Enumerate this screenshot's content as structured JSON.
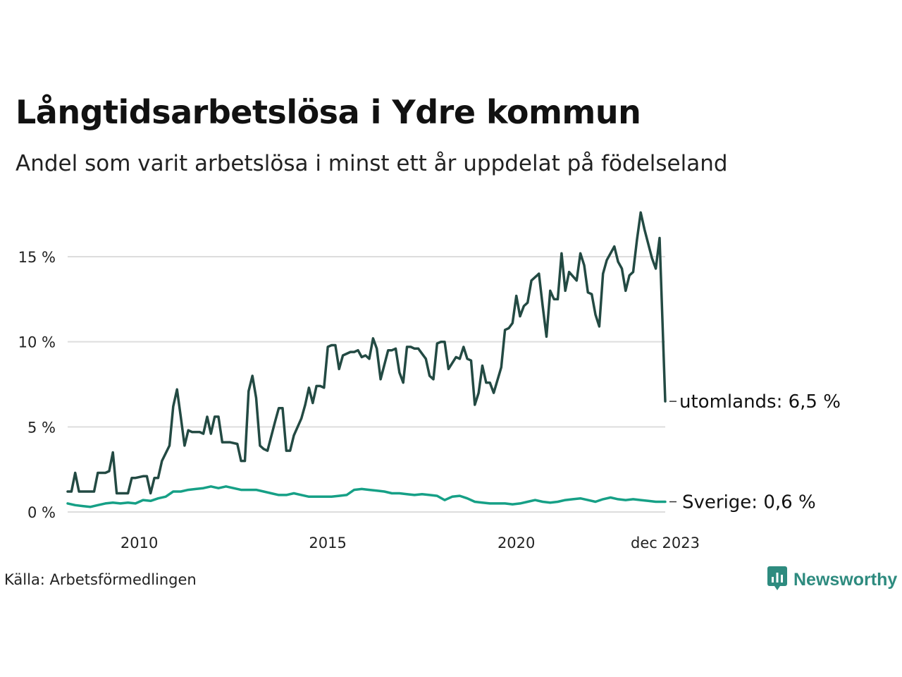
{
  "header": {
    "title": "Långtidsarbetslösa i Ydre kommun",
    "subtitle": "Andel som varit arbetslösa i minst ett år uppdelat på födelseland"
  },
  "footer": {
    "source": "Källa: Arbetsförmedlingen",
    "brand": "Newsworthy",
    "brand_icon": "newsworthy-logo-icon"
  },
  "chart_data": {
    "type": "line",
    "title": "Långtidsarbetslösa i Ydre kommun",
    "subtitle": "Andel som varit arbetslösa i minst ett år uppdelat på födelseland",
    "xlabel": "",
    "ylabel": "",
    "x_start": "2008-03",
    "x_end": "2023-12",
    "xlim": [
      2008.1,
      2023.95
    ],
    "ylim": [
      0,
      18
    ],
    "grid": true,
    "x_ticks": [
      {
        "value": 2010,
        "label": "2010"
      },
      {
        "value": 2015,
        "label": "2015"
      },
      {
        "value": 2020,
        "label": "2020"
      },
      {
        "value": 2023.95,
        "label": "dec 2023"
      }
    ],
    "y_ticks": [
      {
        "value": 0,
        "label": "0 %"
      },
      {
        "value": 5,
        "label": "5 %"
      },
      {
        "value": 10,
        "label": "10 %"
      },
      {
        "value": 15,
        "label": "15 %"
      }
    ],
    "series": [
      {
        "name": "utomlands",
        "end_label": "utomlands: 6,5 %",
        "color": "#234a43",
        "points": [
          [
            2008.1,
            1.2
          ],
          [
            2008.2,
            1.2
          ],
          [
            2008.3,
            2.3
          ],
          [
            2008.4,
            1.2
          ],
          [
            2008.5,
            1.2
          ],
          [
            2008.7,
            1.2
          ],
          [
            2008.8,
            1.2
          ],
          [
            2008.9,
            2.3
          ],
          [
            2009.1,
            2.3
          ],
          [
            2009.2,
            2.4
          ],
          [
            2009.3,
            3.5
          ],
          [
            2009.4,
            1.1
          ],
          [
            2009.6,
            1.1
          ],
          [
            2009.7,
            1.1
          ],
          [
            2009.8,
            2.0
          ],
          [
            2009.9,
            2.0
          ],
          [
            2010.1,
            2.1
          ],
          [
            2010.2,
            2.1
          ],
          [
            2010.3,
            1.1
          ],
          [
            2010.4,
            2.0
          ],
          [
            2010.5,
            2.0
          ],
          [
            2010.6,
            3.0
          ],
          [
            2010.8,
            3.9
          ],
          [
            2010.9,
            6.2
          ],
          [
            2011.0,
            7.2
          ],
          [
            2011.1,
            5.6
          ],
          [
            2011.2,
            3.9
          ],
          [
            2011.3,
            4.8
          ],
          [
            2011.4,
            4.7
          ],
          [
            2011.6,
            4.7
          ],
          [
            2011.7,
            4.6
          ],
          [
            2011.8,
            5.6
          ],
          [
            2011.9,
            4.6
          ],
          [
            2012.0,
            5.6
          ],
          [
            2012.1,
            5.6
          ],
          [
            2012.2,
            4.1
          ],
          [
            2012.3,
            4.1
          ],
          [
            2012.4,
            4.1
          ],
          [
            2012.6,
            4.0
          ],
          [
            2012.7,
            3.0
          ],
          [
            2012.8,
            3.0
          ],
          [
            2012.9,
            7.1
          ],
          [
            2013.0,
            8.0
          ],
          [
            2013.1,
            6.7
          ],
          [
            2013.2,
            3.9
          ],
          [
            2013.3,
            3.7
          ],
          [
            2013.4,
            3.6
          ],
          [
            2013.6,
            5.3
          ],
          [
            2013.7,
            6.1
          ],
          [
            2013.8,
            6.1
          ],
          [
            2013.9,
            3.6
          ],
          [
            2014.0,
            3.6
          ],
          [
            2014.1,
            4.5
          ],
          [
            2014.3,
            5.5
          ],
          [
            2014.4,
            6.3
          ],
          [
            2014.5,
            7.3
          ],
          [
            2014.6,
            6.4
          ],
          [
            2014.7,
            7.4
          ],
          [
            2014.8,
            7.4
          ],
          [
            2014.9,
            7.3
          ],
          [
            2015.0,
            9.7
          ],
          [
            2015.1,
            9.8
          ],
          [
            2015.2,
            9.8
          ],
          [
            2015.3,
            8.4
          ],
          [
            2015.4,
            9.2
          ],
          [
            2015.6,
            9.4
          ],
          [
            2015.7,
            9.4
          ],
          [
            2015.8,
            9.5
          ],
          [
            2015.9,
            9.1
          ],
          [
            2016.0,
            9.2
          ],
          [
            2016.1,
            9.0
          ],
          [
            2016.2,
            10.2
          ],
          [
            2016.3,
            9.6
          ],
          [
            2016.4,
            7.8
          ],
          [
            2016.6,
            9.5
          ],
          [
            2016.7,
            9.5
          ],
          [
            2016.8,
            9.6
          ],
          [
            2016.9,
            8.2
          ],
          [
            2017.0,
            7.6
          ],
          [
            2017.1,
            9.7
          ],
          [
            2017.2,
            9.7
          ],
          [
            2017.3,
            9.6
          ],
          [
            2017.4,
            9.6
          ],
          [
            2017.6,
            9.0
          ],
          [
            2017.7,
            8.0
          ],
          [
            2017.8,
            7.8
          ],
          [
            2017.9,
            9.9
          ],
          [
            2018.0,
            10.0
          ],
          [
            2018.1,
            10.0
          ],
          [
            2018.2,
            8.4
          ],
          [
            2018.4,
            9.1
          ],
          [
            2018.5,
            9.0
          ],
          [
            2018.6,
            9.7
          ],
          [
            2018.7,
            9.0
          ],
          [
            2018.8,
            8.9
          ],
          [
            2018.9,
            6.3
          ],
          [
            2019.0,
            7.0
          ],
          [
            2019.1,
            8.6
          ],
          [
            2019.2,
            7.6
          ],
          [
            2019.3,
            7.6
          ],
          [
            2019.4,
            7.0
          ],
          [
            2019.6,
            8.5
          ],
          [
            2019.7,
            10.7
          ],
          [
            2019.8,
            10.8
          ],
          [
            2019.9,
            11.1
          ],
          [
            2020.0,
            12.7
          ],
          [
            2020.1,
            11.5
          ],
          [
            2020.2,
            12.1
          ],
          [
            2020.3,
            12.3
          ],
          [
            2020.4,
            13.6
          ],
          [
            2020.6,
            14.0
          ],
          [
            2020.7,
            12.1
          ],
          [
            2020.8,
            10.3
          ],
          [
            2020.9,
            13.0
          ],
          [
            2021.0,
            12.5
          ],
          [
            2021.1,
            12.5
          ],
          [
            2021.2,
            15.2
          ],
          [
            2021.3,
            13.0
          ],
          [
            2021.4,
            14.1
          ],
          [
            2021.6,
            13.6
          ],
          [
            2021.7,
            15.2
          ],
          [
            2021.8,
            14.5
          ],
          [
            2021.9,
            12.9
          ],
          [
            2022.0,
            12.8
          ],
          [
            2022.1,
            11.6
          ],
          [
            2022.2,
            10.9
          ],
          [
            2022.3,
            14.0
          ],
          [
            2022.4,
            14.8
          ],
          [
            2022.6,
            15.6
          ],
          [
            2022.7,
            14.7
          ],
          [
            2022.8,
            14.3
          ],
          [
            2022.9,
            13.0
          ],
          [
            2023.0,
            13.9
          ],
          [
            2023.1,
            14.1
          ],
          [
            2023.2,
            16.0
          ],
          [
            2023.3,
            17.6
          ],
          [
            2023.4,
            16.6
          ],
          [
            2023.6,
            14.9
          ],
          [
            2023.7,
            14.3
          ],
          [
            2023.8,
            16.1
          ],
          [
            2023.95,
            6.5
          ]
        ]
      },
      {
        "name": "Sverige",
        "end_label": "Sverige: 0,6 %",
        "color": "#16a086",
        "points": [
          [
            2008.1,
            0.5
          ],
          [
            2008.3,
            0.4
          ],
          [
            2008.5,
            0.35
          ],
          [
            2008.7,
            0.3
          ],
          [
            2008.9,
            0.4
          ],
          [
            2009.1,
            0.5
          ],
          [
            2009.3,
            0.55
          ],
          [
            2009.5,
            0.5
          ],
          [
            2009.7,
            0.55
          ],
          [
            2009.9,
            0.5
          ],
          [
            2010.1,
            0.7
          ],
          [
            2010.3,
            0.65
          ],
          [
            2010.5,
            0.8
          ],
          [
            2010.7,
            0.9
          ],
          [
            2010.9,
            1.2
          ],
          [
            2011.1,
            1.2
          ],
          [
            2011.3,
            1.3
          ],
          [
            2011.5,
            1.35
          ],
          [
            2011.7,
            1.4
          ],
          [
            2011.9,
            1.5
          ],
          [
            2012.1,
            1.4
          ],
          [
            2012.3,
            1.5
          ],
          [
            2012.5,
            1.4
          ],
          [
            2012.7,
            1.3
          ],
          [
            2012.9,
            1.3
          ],
          [
            2013.1,
            1.3
          ],
          [
            2013.3,
            1.2
          ],
          [
            2013.5,
            1.1
          ],
          [
            2013.7,
            1.0
          ],
          [
            2013.9,
            1.0
          ],
          [
            2014.1,
            1.1
          ],
          [
            2014.3,
            1.0
          ],
          [
            2014.5,
            0.9
          ],
          [
            2014.7,
            0.9
          ],
          [
            2014.9,
            0.9
          ],
          [
            2015.1,
            0.9
          ],
          [
            2015.3,
            0.95
          ],
          [
            2015.5,
            1.0
          ],
          [
            2015.7,
            1.3
          ],
          [
            2015.9,
            1.35
          ],
          [
            2016.1,
            1.3
          ],
          [
            2016.3,
            1.25
          ],
          [
            2016.5,
            1.2
          ],
          [
            2016.7,
            1.1
          ],
          [
            2016.9,
            1.1
          ],
          [
            2017.1,
            1.05
          ],
          [
            2017.3,
            1.0
          ],
          [
            2017.5,
            1.05
          ],
          [
            2017.7,
            1.0
          ],
          [
            2017.9,
            0.95
          ],
          [
            2018.1,
            0.7
          ],
          [
            2018.3,
            0.9
          ],
          [
            2018.5,
            0.95
          ],
          [
            2018.7,
            0.8
          ],
          [
            2018.9,
            0.6
          ],
          [
            2019.1,
            0.55
          ],
          [
            2019.3,
            0.5
          ],
          [
            2019.5,
            0.5
          ],
          [
            2019.7,
            0.5
          ],
          [
            2019.9,
            0.45
          ],
          [
            2020.1,
            0.5
          ],
          [
            2020.3,
            0.6
          ],
          [
            2020.5,
            0.7
          ],
          [
            2020.7,
            0.6
          ],
          [
            2020.9,
            0.55
          ],
          [
            2021.1,
            0.6
          ],
          [
            2021.3,
            0.7
          ],
          [
            2021.5,
            0.75
          ],
          [
            2021.7,
            0.8
          ],
          [
            2021.9,
            0.7
          ],
          [
            2022.1,
            0.6
          ],
          [
            2022.3,
            0.75
          ],
          [
            2022.5,
            0.85
          ],
          [
            2022.7,
            0.75
          ],
          [
            2022.9,
            0.7
          ],
          [
            2023.1,
            0.75
          ],
          [
            2023.3,
            0.7
          ],
          [
            2023.5,
            0.65
          ],
          [
            2023.7,
            0.6
          ],
          [
            2023.85,
            0.6
          ],
          [
            2023.95,
            0.6
          ]
        ]
      }
    ]
  }
}
